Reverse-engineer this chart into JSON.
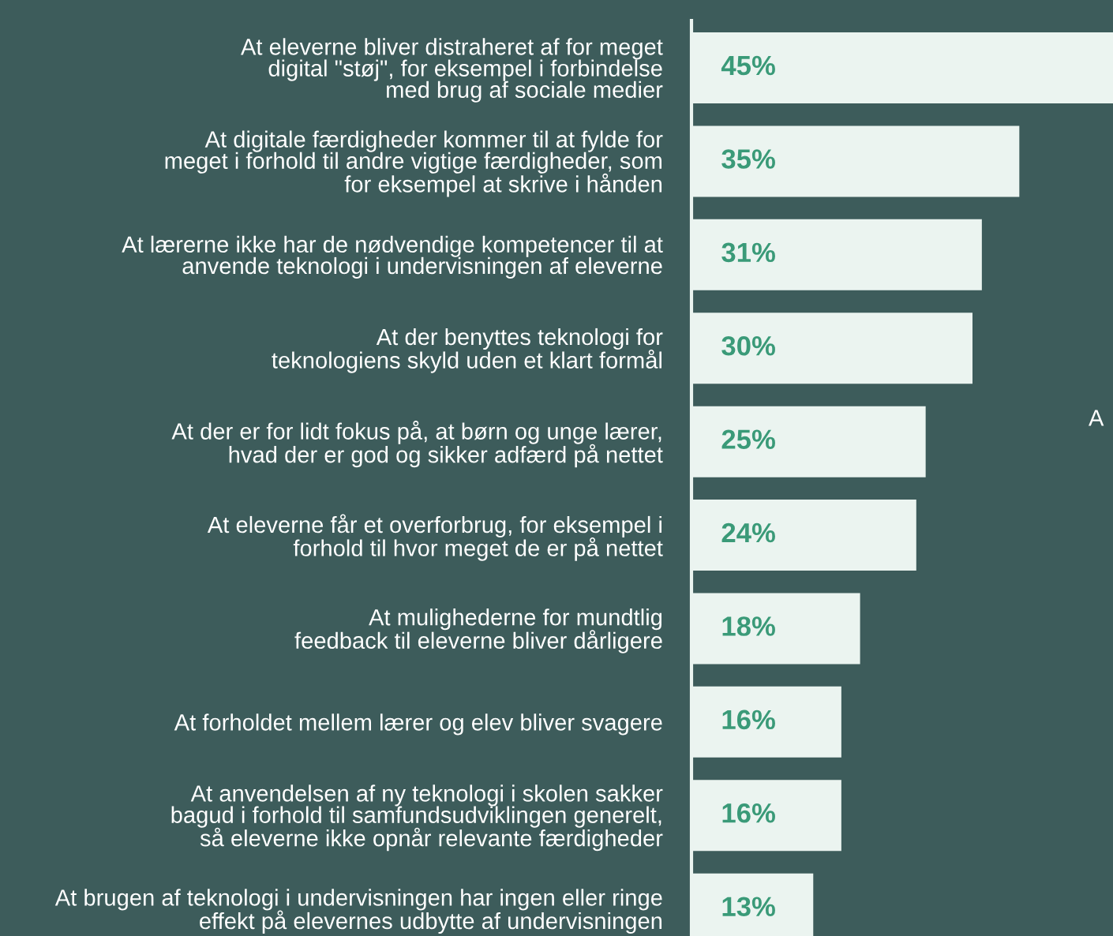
{
  "chart_data": {
    "type": "bar",
    "orientation": "horizontal",
    "categories": [
      "At eleverne bliver distraheret af for meget\ndigital \"støj\", for eksempel i forbindelse\nmed brug af sociale medier",
      "At digitale færdigheder kommer til at fylde for\nmeget i forhold til andre vigtige færdigheder, som\nfor eksempel at skrive i hånden",
      "At lærerne ikke har de nødvendige kompetencer til at\nanvende teknologi i undervisningen af eleverne",
      "At der benyttes teknologi for\nteknologiens skyld uden et klart formål",
      "At der er for lidt fokus på, at børn og unge lærer,\nhvad der er god og sikker adfærd på nettet",
      "At eleverne får et overforbrug, for eksempel i\nforhold til hvor meget de er på nettet",
      "At mulighederne for mundtlig\nfeedback til eleverne bliver dårligere",
      "At forholdet mellem lærer og elev bliver svagere",
      "At anvendelsen af ny teknologi i skolen sakker\nbagud i forhold til samfundsudviklingen generelt,\nså eleverne ikke opnår relevante færdigheder",
      "At brugen af teknologi i undervisningen har ingen eller ringe\neffekt på elevernes udbytte af undervisningen"
    ],
    "values": [
      45,
      35,
      31,
      30,
      25,
      24,
      18,
      16,
      16,
      13
    ],
    "value_labels": [
      "45%",
      "35%",
      "31%",
      "30%",
      "25%",
      "24%",
      "18%",
      "16%",
      "16%",
      "13%"
    ],
    "color": "#ebf4f0",
    "xlim": [
      0,
      45
    ],
    "tick_labels": "y",
    "grid": false,
    "annotations": [
      "A"
    ]
  }
}
